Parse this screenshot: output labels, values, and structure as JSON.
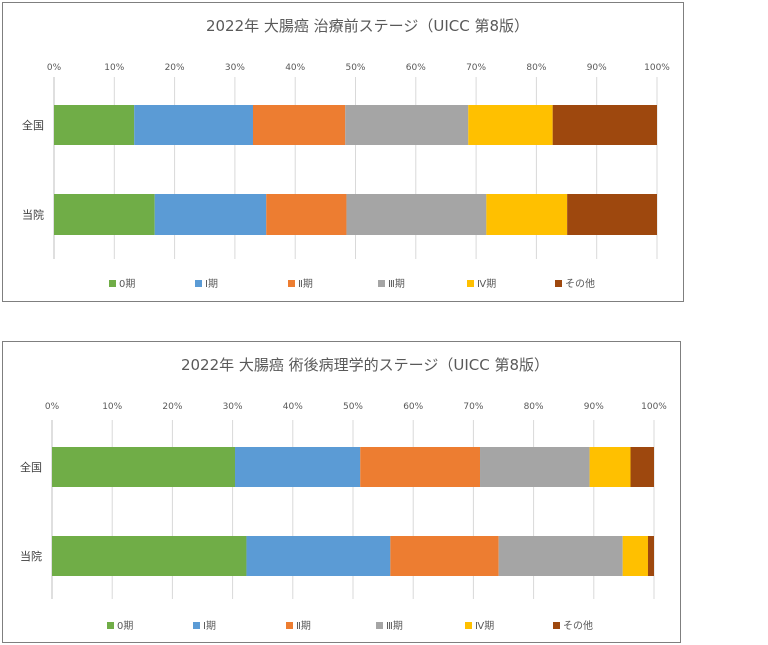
{
  "chart_data": [
    {
      "type": "bar",
      "orientation": "horizontal",
      "stacked": "percent",
      "title": "2022年 大腸癌 治療前ステージ（UICC 第8版）",
      "x_ticks": [
        "0%",
        "10%",
        "20%",
        "30%",
        "40%",
        "50%",
        "60%",
        "70%",
        "80%",
        "90%",
        "100%"
      ],
      "xlim": [
        0,
        100
      ],
      "categories": [
        "全国",
        "当院"
      ],
      "series": [
        {
          "name": "0期",
          "color": "#70ad47",
          "values": [
            13.3,
            16.7
          ]
        },
        {
          "name": "Ⅰ期",
          "color": "#5b9bd5",
          "values": [
            19.7,
            18.5
          ]
        },
        {
          "name": "Ⅱ期",
          "color": "#ed7d31",
          "values": [
            15.3,
            13.3
          ]
        },
        {
          "name": "Ⅲ期",
          "color": "#a5a5a5",
          "values": [
            20.4,
            23.2
          ]
        },
        {
          "name": "Ⅳ期",
          "color": "#ffc000",
          "values": [
            14.0,
            13.4
          ]
        },
        {
          "name": "その他",
          "color": "#9e480e",
          "values": [
            17.3,
            14.9
          ]
        }
      ],
      "legend_position": "bottom",
      "grid": true
    },
    {
      "type": "bar",
      "orientation": "horizontal",
      "stacked": "percent",
      "title": "2022年 大腸癌 術後病理学的ステージ（UICC 第8版）",
      "x_ticks": [
        "0%",
        "10%",
        "20%",
        "30%",
        "40%",
        "50%",
        "60%",
        "70%",
        "80%",
        "90%",
        "100%"
      ],
      "xlim": [
        0,
        100
      ],
      "categories": [
        "全国",
        "当院"
      ],
      "series": [
        {
          "name": "0期",
          "color": "#70ad47",
          "values": [
            30.4,
            32.3
          ]
        },
        {
          "name": "Ⅰ期",
          "color": "#5b9bd5",
          "values": [
            20.8,
            23.9
          ]
        },
        {
          "name": "Ⅱ期",
          "color": "#ed7d31",
          "values": [
            19.9,
            18.0
          ]
        },
        {
          "name": "Ⅲ期",
          "color": "#a5a5a5",
          "values": [
            18.2,
            20.6
          ]
        },
        {
          "name": "Ⅳ期",
          "color": "#ffc000",
          "values": [
            6.8,
            4.2
          ]
        },
        {
          "name": "その他",
          "color": "#9e480e",
          "values": [
            3.9,
            1.0
          ]
        }
      ],
      "legend_position": "bottom",
      "grid": true
    }
  ]
}
